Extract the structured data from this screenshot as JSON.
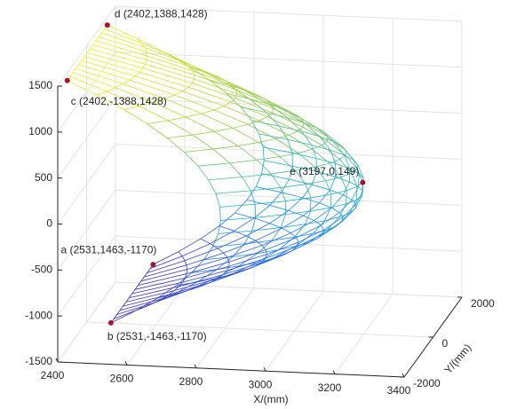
{
  "chart_data": {
    "type": "surface3d",
    "xlabel": "X/(mm)",
    "ylabel": "Y/(mm)",
    "xlim": [
      2400,
      3400
    ],
    "ylim": [
      -2000,
      2000
    ],
    "zlim": [
      -1500,
      1500
    ],
    "xticks": [
      2400,
      2600,
      2800,
      3000,
      3200,
      3400
    ],
    "yticks": [
      -2000,
      0,
      2000
    ],
    "zticks": [
      -1500,
      -1000,
      -500,
      0,
      500,
      1000,
      1500
    ],
    "grid": true,
    "point_color": "#a2142f",
    "points": [
      {
        "label": "d (2402,1388,1428)",
        "x": 2402,
        "y": 1388,
        "z": 1428
      },
      {
        "label": "c (2402,-1388,1428)",
        "x": 2402,
        "y": -1388,
        "z": 1428
      },
      {
        "label": "e (3197,0,149)",
        "x": 3197,
        "y": 0,
        "z": 149
      },
      {
        "label": "a (2531,1463,-1170)",
        "x": 2531,
        "y": 1463,
        "z": -1170
      },
      {
        "label": "b (2531,-1463,-1170)",
        "x": 2531,
        "y": -1463,
        "z": -1170
      }
    ]
  }
}
